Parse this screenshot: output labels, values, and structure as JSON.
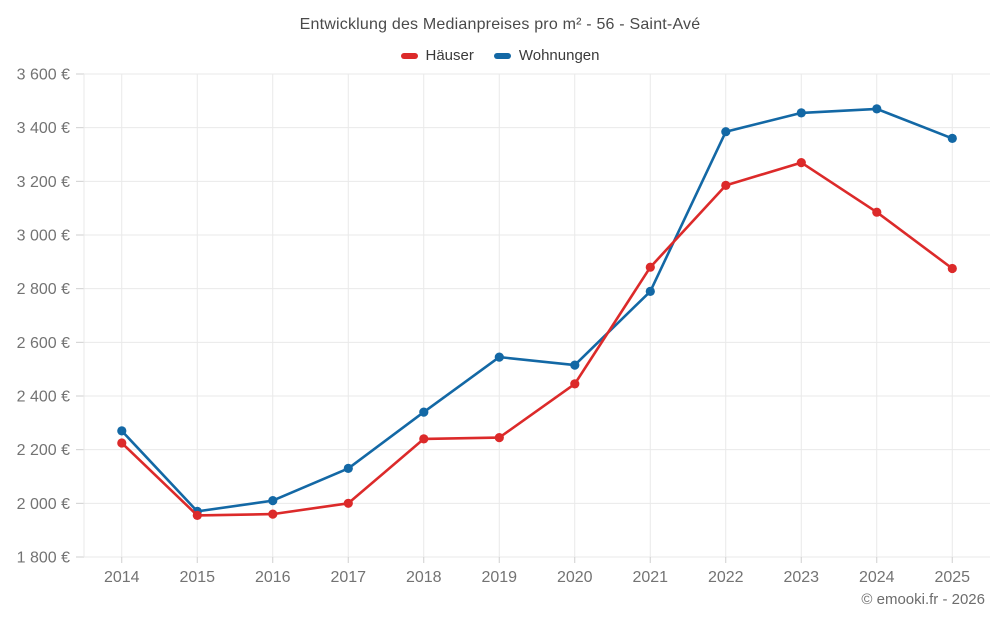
{
  "page": {
    "footer_credit": "© emooki.fr - 2026"
  },
  "chart_data": {
    "type": "line",
    "title": "Entwicklung des Medianpreises pro m² - 56 - Saint-Avé",
    "categories": [
      "2014",
      "2015",
      "2016",
      "2017",
      "2018",
      "2019",
      "2020",
      "2021",
      "2022",
      "2023",
      "2024",
      "2025"
    ],
    "series": [
      {
        "name": "Häuser",
        "color": "#dc2a2a",
        "values": [
          2225,
          1955,
          1960,
          2000,
          2240,
          2245,
          2445,
          2880,
          3185,
          3270,
          3085,
          2875
        ]
      },
      {
        "name": "Wohnungen",
        "color": "#1368a5",
        "values": [
          2270,
          1970,
          2010,
          2130,
          2340,
          2545,
          2515,
          2790,
          3385,
          3455,
          3470,
          3360
        ]
      }
    ],
    "xlabel": "",
    "ylabel": "",
    "ylim": [
      1800,
      3600
    ],
    "ytick_step": 200,
    "ytick_format": "{value} €",
    "grid": true,
    "legend_position": "top"
  },
  "style": {
    "grid_color": "#e9e9e9",
    "tick_color": "#cfcfcf",
    "axis_label_color": "#737373",
    "title_color": "#4a4a4a",
    "legend_text_color": "#3a3a3a",
    "footer_color": "#6d6d6d"
  }
}
